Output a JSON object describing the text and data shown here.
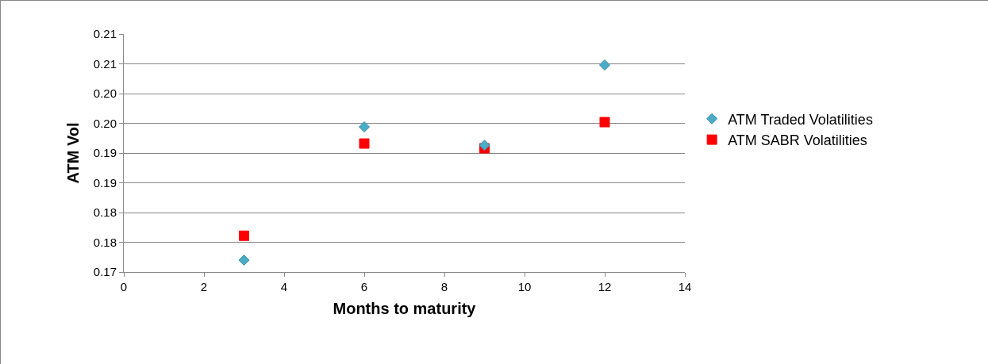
{
  "chart_data": {
    "type": "scatter",
    "xlabel": "Months to maturity",
    "ylabel": "ATM Vol",
    "xlim": [
      0,
      14
    ],
    "xticks": [
      0,
      2,
      4,
      6,
      8,
      10,
      12,
      14
    ],
    "ylim": [
      0.17,
      0.21
    ],
    "yticks": [
      {
        "value": 0.17,
        "label": "0.17"
      },
      {
        "value": 0.175,
        "label": "0.18"
      },
      {
        "value": 0.18,
        "label": "0.18"
      },
      {
        "value": 0.185,
        "label": "0.19"
      },
      {
        "value": 0.19,
        "label": "0.19"
      },
      {
        "value": 0.195,
        "label": "0.20"
      },
      {
        "value": 0.2,
        "label": "0.20"
      },
      {
        "value": 0.205,
        "label": "0.21"
      },
      {
        "value": 0.21,
        "label": "0.21"
      }
    ],
    "grid": "y",
    "legend": "right",
    "x": [
      3,
      6,
      9,
      12
    ],
    "series": [
      {
        "name": "ATM Traded Volatilities",
        "color": "#4bacc6",
        "marker": "diamond",
        "values": [
          0.172,
          0.1944,
          0.1913,
          0.2048
        ]
      },
      {
        "name": "ATM SABR Volatilities",
        "color": "#ff0000",
        "marker": "square",
        "values": [
          0.1761,
          0.1916,
          0.1908,
          0.1952
        ]
      }
    ]
  }
}
